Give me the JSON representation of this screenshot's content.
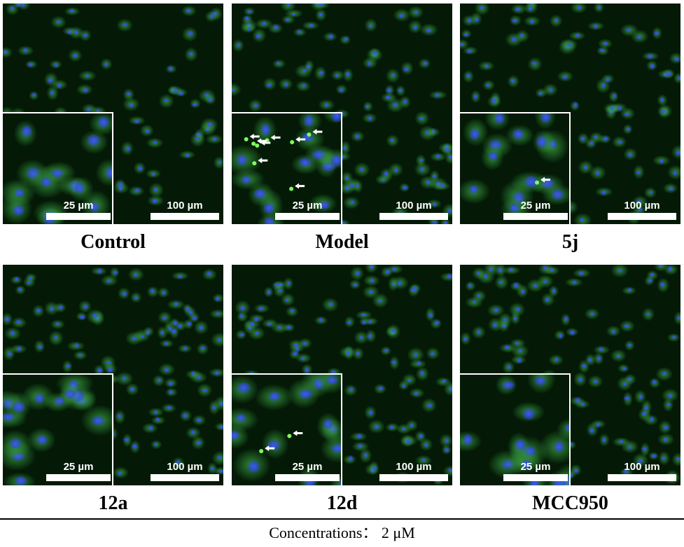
{
  "panels": [
    {
      "caption": "Control",
      "scale_main": "100 µm",
      "scale_inset": "25 µm",
      "arrow_count": 0
    },
    {
      "caption": "Model",
      "scale_main": "100 µm",
      "scale_inset": "25 µm",
      "arrow_count": 8
    },
    {
      "caption": "5j",
      "scale_main": "100 µm",
      "scale_inset": "25 µm",
      "arrow_count": 1
    },
    {
      "caption": "12a",
      "scale_main": "100 µm",
      "scale_inset": "25 µm",
      "arrow_count": 0
    },
    {
      "caption": "12d",
      "scale_main": "100 µm",
      "scale_inset": "25 µm",
      "arrow_count": 2
    },
    {
      "caption": "MCC950",
      "scale_main": "100 µm",
      "scale_inset": "25 µm",
      "arrow_count": 0
    }
  ],
  "footer": "Concentrations： 2 μM",
  "colors": {
    "nucleus": "#2a3cf0",
    "cytoplasm": "#3fae4a",
    "background": "#041a06",
    "speck": "#7dff5c",
    "arrow": "#ffffff"
  }
}
